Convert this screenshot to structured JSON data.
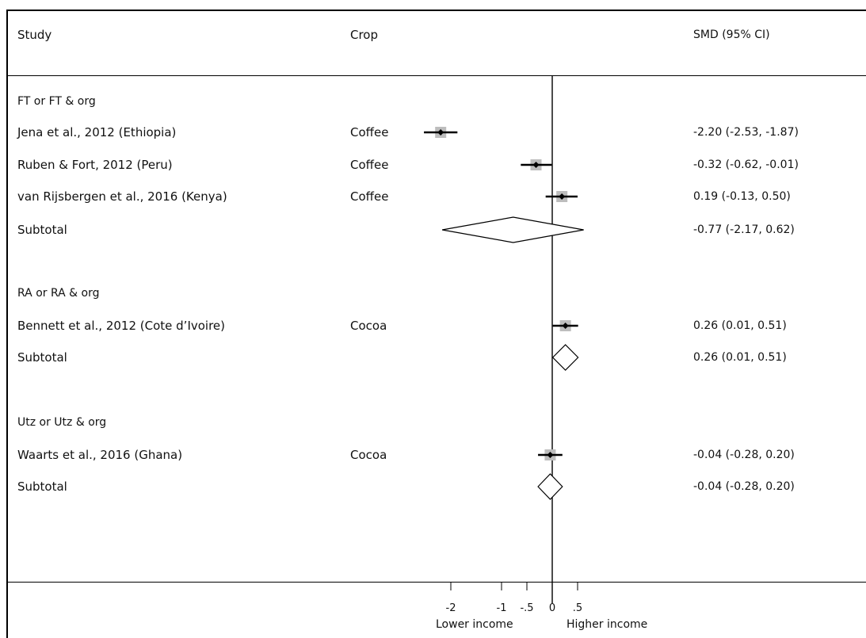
{
  "headers": {
    "study": "Study",
    "crop": "Crop",
    "smd": "SMD (95% CI)"
  },
  "x_axis": {
    "ticks": [
      {
        "value": -2,
        "label": "-2"
      },
      {
        "value": -1,
        "label": "-1"
      },
      {
        "value": -0.5,
        "label": "-.5"
      },
      {
        "value": 0,
        "label": "0"
      },
      {
        "value": 0.5,
        "label": ".5"
      }
    ],
    "left_caption": "Lower income",
    "right_caption": "Higher income"
  },
  "chart_data": {
    "type": "forest",
    "xlim": [
      -2.53,
      0.62
    ],
    "reference_line": 0,
    "rows": [
      {
        "kind": "group",
        "label": "FT or FT & org"
      },
      {
        "kind": "study",
        "label": "Jena et al., 2012 (Ethiopia)",
        "crop": "Coffee",
        "est": -2.2,
        "lo": -2.53,
        "hi": -1.87,
        "ci_text": "-2.20 (-2.53, -1.87)"
      },
      {
        "kind": "study",
        "label": "Ruben & Fort, 2012 (Peru)",
        "crop": "Coffee",
        "est": -0.32,
        "lo": -0.62,
        "hi": -0.01,
        "ci_text": "-0.32 (-0.62, -0.01)"
      },
      {
        "kind": "study",
        "label": "van Rijsbergen et al., 2016 (Kenya)",
        "crop": "Coffee",
        "est": 0.19,
        "lo": -0.13,
        "hi": 0.5,
        "ci_text": "0.19 (-0.13, 0.50)"
      },
      {
        "kind": "subtotal",
        "label": "Subtotal",
        "est": -0.77,
        "lo": -2.17,
        "hi": 0.62,
        "ci_text": "-0.77 (-2.17, 0.62)"
      },
      {
        "kind": "group",
        "label": "RA or RA & org"
      },
      {
        "kind": "study",
        "label": "Bennett et al., 2012 (Cote d’Ivoire)",
        "crop": "Cocoa",
        "est": 0.26,
        "lo": 0.01,
        "hi": 0.51,
        "ci_text": "0.26 (0.01, 0.51)"
      },
      {
        "kind": "subtotal",
        "label": "Subtotal",
        "est": 0.26,
        "lo": 0.01,
        "hi": 0.51,
        "ci_text": "0.26 (0.01, 0.51)"
      },
      {
        "kind": "group",
        "label": "Utz or Utz & org"
      },
      {
        "kind": "study",
        "label": "Waarts et al., 2016 (Ghana)",
        "crop": "Cocoa",
        "est": -0.04,
        "lo": -0.28,
        "hi": 0.2,
        "ci_text": "-0.04 (-0.28, 0.20)"
      },
      {
        "kind": "subtotal",
        "label": "Subtotal",
        "est": -0.04,
        "lo": -0.28,
        "hi": 0.2,
        "ci_text": "-0.04 (-0.28, 0.20)"
      }
    ]
  }
}
